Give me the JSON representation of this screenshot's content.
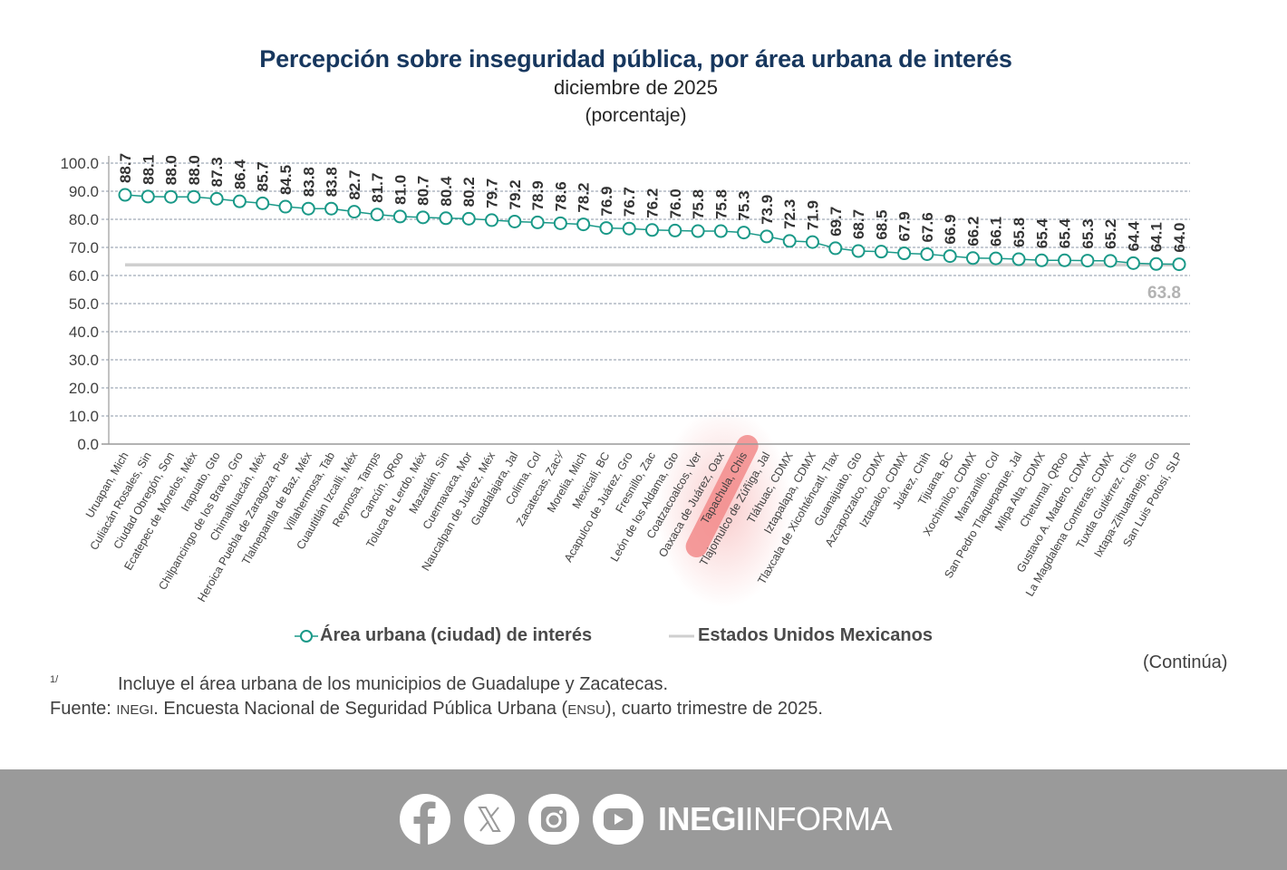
{
  "header": {
    "title": "Percepción sobre inseguridad pública, por área urbana de interés",
    "subtitle": "diciembre de 2025",
    "unit": "(porcentaje)"
  },
  "colors": {
    "series": "#1a9988",
    "national": "#cfcfcf",
    "national_label": "#b3b3b3",
    "title": "#17375e",
    "footer_bg": "#9a9a9a"
  },
  "chart_data": {
    "type": "line",
    "title": "Percepción sobre inseguridad pública, por área urbana de interés",
    "subtitle": "diciembre de 2025",
    "ylabel": "(porcentaje)",
    "xlabel": "",
    "ylim": [
      0,
      100
    ],
    "yticks": [
      "0.0",
      "10.0",
      "20.0",
      "30.0",
      "40.0",
      "50.0",
      "60.0",
      "70.0",
      "80.0",
      "90.0",
      "100.0"
    ],
    "grid": true,
    "legend_position": "bottom",
    "categories": [
      "Uruapan, Mich",
      "Culiacán Rosales, Sin",
      "Ciudad Obregón, Son",
      "Ecatepec de Morelos, Méx",
      "Irapuato, Gto",
      "Chilpancingo de los Bravo, Gro",
      "Chimalhuacán, Méx",
      "Heroica Puebla de Zaragoza, Pue",
      "Tlalnepantla de Baz, Méx",
      "Villahermosa, Tab",
      "Cuautitlán Izcalli, Méx",
      "Reynosa, Tamps",
      "Cancún, QRoo",
      "Toluca de Lerdo, Méx",
      "Mazatlán, Sin",
      "Cuernavaca, Mor",
      "Naucalpan de Juárez, Méx",
      "Guadalajara, Jal",
      "Colima, Col",
      "Zacatecas, Zac¹⁄",
      "Morelia, Mich",
      "Mexicali, BC",
      "Acapulco de Juárez, Gro",
      "Fresnillo, Zac",
      "León de los Aldama, Gto",
      "Coatzacoalcos, Ver",
      "Oaxaca de Juárez, Oax",
      "Tapachula, Chis",
      "Tlajomulco de Zúñiga, Jal",
      "Tláhuac, CDMX",
      "Iztapalapa, CDMX",
      "Tlaxcala de Xicohténcatl, Tlax",
      "Guanajuato, Gto",
      "Azcapotzalco, CDMX",
      "Iztacalco, CDMX",
      "Juárez, Chih",
      "Tijuana, BC",
      "Xochimilco, CDMX",
      "Manzanillo, Col",
      "San Pedro Tlaquepaque, Jal",
      "Milpa Alta, CDMX",
      "Chetumal, QRoo",
      "Gustavo A. Madero, CDMX",
      "La Magdalena Contreras, CDMX",
      "Tuxtla Gutiérrez, Chis",
      "Ixtapa-Zihuatanejo, Gro",
      "San Luis Potosí, SLP"
    ],
    "series": [
      {
        "name": "Área urbana (ciudad) de interés",
        "values": [
          88.7,
          88.1,
          88.0,
          88.0,
          87.3,
          86.4,
          85.7,
          84.5,
          83.8,
          83.8,
          82.7,
          81.7,
          81.0,
          80.7,
          80.4,
          80.2,
          79.7,
          79.2,
          78.9,
          78.6,
          78.2,
          76.9,
          76.7,
          76.2,
          76.0,
          75.8,
          75.8,
          75.3,
          73.9,
          72.3,
          71.9,
          69.7,
          68.7,
          68.5,
          67.9,
          67.6,
          66.9,
          66.2,
          66.1,
          65.8,
          65.4,
          65.4,
          65.3,
          65.2,
          64.4,
          64.1,
          64.0
        ]
      },
      {
        "name": "Estados Unidos Mexicanos",
        "value": 63.8,
        "label": "63.8"
      }
    ],
    "annotations": [
      {
        "type": "highlight",
        "target": "Tapachula, Chis",
        "color": "#f08080"
      }
    ]
  },
  "legend": {
    "series_label": "Área urbana (ciudad) de interés",
    "national_label": "Estados Unidos Mexicanos"
  },
  "notes": {
    "continua": "(Continúa)",
    "footnote_mark": "1/",
    "footnote": "Incluye el área urbana de los municipios de Guadalupe y Zacatecas.",
    "source_prefix": "Fuente: ",
    "source_org": "INEGI",
    "source_mid": ". Encuesta Nacional de Seguridad Pública Urbana (",
    "source_abbr": "ENSU",
    "source_end": "), cuarto trimestre de 2025."
  },
  "footer": {
    "social_icons": [
      "facebook-icon",
      "x-icon",
      "instagram-icon",
      "youtube-icon"
    ],
    "brand_bold": "INEGI",
    "brand_light": "INFORMA"
  }
}
